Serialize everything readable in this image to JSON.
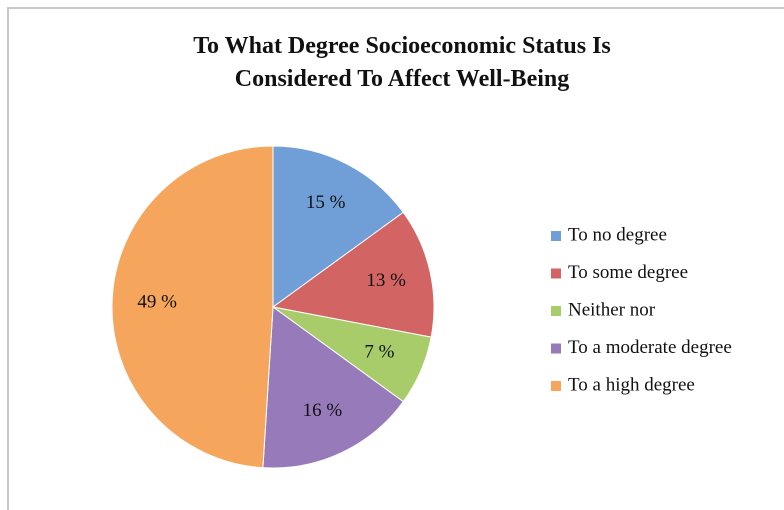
{
  "chart_data": {
    "type": "pie",
    "title": "To What Degree Socioeconomic Status Is Considered To Affect Well-Being",
    "categories": [
      "To no degree",
      "To some degree",
      "Neither nor",
      "To a moderate degree",
      "To a high degree"
    ],
    "values": [
      15,
      13,
      7,
      16,
      49
    ],
    "value_labels": [
      "15 %",
      "13 %",
      "7 %",
      "16 %",
      "49 %"
    ],
    "colors": [
      "#6f9fd6",
      "#d26563",
      "#a9cc6b",
      "#977ab9",
      "#f6a65c"
    ],
    "legend": "right"
  }
}
